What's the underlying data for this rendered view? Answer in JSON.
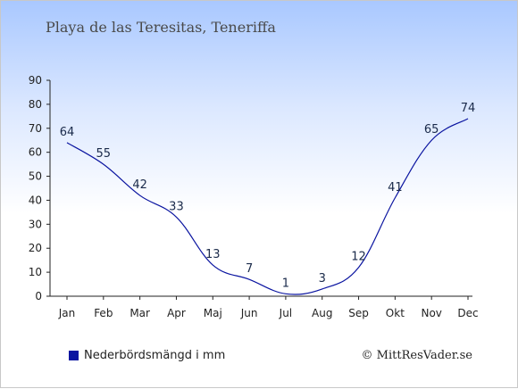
{
  "header": {
    "title": "Playa de las Teresitas, Teneriffa"
  },
  "legend": {
    "label": "Nederbördsmängd i mm",
    "color": "#0a14a0"
  },
  "credit": {
    "text": "© MittResVader.se"
  },
  "chart_data": {
    "type": "line",
    "title": "Playa de las Teresitas, Teneriffa",
    "xlabel": "",
    "ylabel": "",
    "categories": [
      "Jan",
      "Feb",
      "Mar",
      "Apr",
      "Maj",
      "Jun",
      "Jul",
      "Aug",
      "Sep",
      "Okt",
      "Nov",
      "Dec"
    ],
    "series": [
      {
        "name": "Nederbördsmängd i mm",
        "values": [
          64,
          55,
          42,
          33,
          13,
          7,
          1,
          3,
          12,
          41,
          65,
          74
        ],
        "color": "#0a14a0"
      }
    ],
    "yticks": [
      0,
      10,
      20,
      30,
      40,
      50,
      60,
      70,
      80,
      90
    ],
    "ylim": [
      0,
      90
    ],
    "grid": false,
    "legend_position": "bottom-left"
  }
}
